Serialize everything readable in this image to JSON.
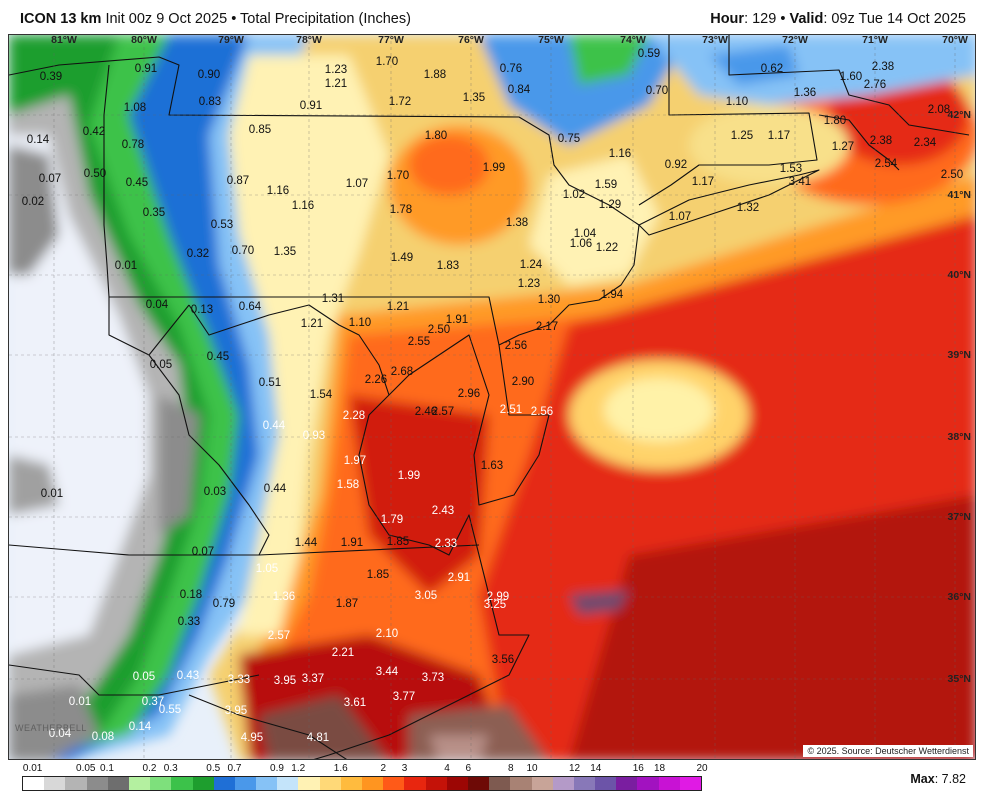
{
  "header": {
    "model": "ICON 13 km",
    "init": "Init 00z 9 Oct 2025",
    "bullet": "•",
    "product": "Total Precipitation (Inches)",
    "hour_label": "Hour",
    "hour_value": ": 129",
    "valid_label": "Valid",
    "valid_value": ": 09z Tue 14 Oct 2025"
  },
  "map": {
    "longitudes": [
      "81°W",
      "80°W",
      "79°W",
      "78°W",
      "77°W",
      "76°W",
      "75°W",
      "74°W",
      "73°W",
      "72°W",
      "71°W",
      "70°W"
    ],
    "latitudes": [
      "42°N",
      "41°N",
      "40°N",
      "39°N",
      "38°N",
      "37°N",
      "36°N",
      "35°N"
    ],
    "source": "© 2025. Source: Deutscher Wetterdienst",
    "watermark": "WEATHERBELL",
    "values": [
      "0.39",
      "0.91",
      "0.90",
      "1.23",
      "1.70",
      "1.88",
      "0.76",
      "0.59",
      "0.62",
      "1.60",
      "2.38",
      "1.21",
      "0.84",
      "0.70",
      "1.36",
      "2.76",
      "0.83",
      "0.91",
      "1.72",
      "1.35",
      "1.10",
      "2.08",
      "1.08",
      "0.85",
      "1.80",
      "0.75",
      "1.25",
      "1.17",
      "1.80",
      "0.14",
      "0.42",
      "0.78",
      "2.38",
      "2.34",
      "1.16",
      "1.27",
      "2.54",
      "1.99",
      "0.92",
      "1.53",
      "0.07",
      "0.50",
      "0.45",
      "0.87",
      "1.16",
      "1.07",
      "1.70",
      "1.59",
      "1.17",
      "3.41",
      "2.50",
      "0.02",
      "1.02",
      "1.29",
      "1.16",
      "1.32",
      "0.35",
      "1.78",
      "1.07",
      "0.53",
      "1.38",
      "1.04",
      "0.32",
      "0.70",
      "1.35",
      "1.49",
      "1.83",
      "1.06",
      "1.22",
      "0.01",
      "1.24",
      "1.23",
      "1.94",
      "0.04",
      "1.30",
      "0.13",
      "0.64",
      "1.31",
      "1.21",
      "1.21",
      "1.10",
      "2.17",
      "2.50",
      "1.91",
      "2.55",
      "2.56",
      "0.45",
      "0.05",
      "2.68",
      "2.26",
      "0.51",
      "2.90",
      "1.54",
      "2.96",
      "2.28",
      "2.46",
      "2.57",
      "2.51",
      "2.56",
      "0.44",
      "0.93",
      "1.97",
      "1.63",
      "1.99",
      "1.58",
      "0.01",
      "0.03",
      "0.44",
      "2.43",
      "1.79",
      "1.44",
      "1.91",
      "1.85",
      "2.33",
      "0.07",
      "1.05",
      "1.85",
      "2.91",
      "0.18",
      "2.99",
      "0.79",
      "1.36",
      "3.05",
      "1.87",
      "3.25",
      "0.33",
      "2.10",
      "2.57",
      "2.21",
      "3.56",
      "3.44",
      "0.05",
      "0.43",
      "3.33",
      "3.95",
      "3.37",
      "3.73",
      "3.77",
      "0.01",
      "0.37",
      "3.61",
      "0.55",
      "3.95",
      "0.14",
      "0.04",
      "0.08",
      "4.95",
      "4.81"
    ]
  },
  "legend": {
    "labels": [
      "0.01",
      "0.05",
      "0.1",
      "0.2",
      "0.3",
      "0.5",
      "0.7",
      "0.9",
      "1.2",
      "1.6",
      "2",
      "3",
      "4",
      "6",
      "8",
      "10",
      "12",
      "14",
      "16",
      "18",
      "20"
    ],
    "colors": [
      "#ffffff",
      "#d8d8d8",
      "#b4b4b4",
      "#8c8c8c",
      "#6e6e6e",
      "#b4f0a0",
      "#7ee07c",
      "#3cc24a",
      "#1e9e2e",
      "#1f6fd6",
      "#4a98ea",
      "#86c2f6",
      "#c4e4fa",
      "#fff2b4",
      "#ffd978",
      "#ffbb3e",
      "#ff9520",
      "#ff5a18",
      "#e8260f",
      "#c41208",
      "#9c0604",
      "#6e0a06",
      "#7e5a50",
      "#a88274",
      "#c8a498",
      "#b49ac8",
      "#8878b8",
      "#6c54a8",
      "#7a1ea0",
      "#a212c0",
      "#c812d4",
      "#e01ae4"
    ],
    "max_label": "Max",
    "max_value": ": 7.82"
  }
}
